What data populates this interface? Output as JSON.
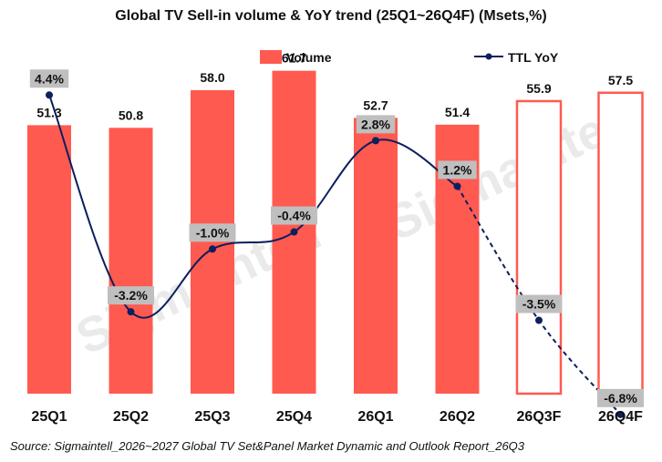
{
  "chart_data": {
    "type": "bar",
    "title": "Global TV Sell-in volume & YoY trend  (25Q1~26Q4F)  (Msets,%)",
    "categories": [
      "25Q1",
      "25Q2",
      "25Q3",
      "25Q4",
      "26Q1",
      "26Q2",
      "26Q3F",
      "26Q4F"
    ],
    "series": [
      {
        "name": "Volume",
        "type": "bar",
        "values": [
          51.3,
          50.8,
          58.0,
          61.7,
          52.7,
          51.4,
          55.9,
          57.5
        ],
        "labels": [
          "51.3",
          "50.8",
          "58.0",
          "61.7",
          "52.7",
          "51.4",
          "55.9",
          "57.5"
        ],
        "forecast_style": "outline",
        "forecast_from_index": 6,
        "color": "#ff5a50"
      },
      {
        "name": "TTL YoY",
        "type": "line",
        "values": [
          4.4,
          -3.2,
          -1.0,
          -0.4,
          2.8,
          1.2,
          -3.5,
          -6.8
        ],
        "labels": [
          "4.4%",
          "-3.2%",
          "-1.0%",
          "-0.4%",
          "2.8%",
          "1.2%",
          "-3.5%",
          "-6.8%"
        ],
        "dashed_from_index": 5,
        "color": "#0d1f5c"
      }
    ],
    "legend_position": "top",
    "grid": false
  },
  "watermark": "Sigmaintell",
  "source": "Source: Sigmaintell_2026~2027 Global TV Set&Panel Market Dynamic and Outlook Report_26Q3",
  "colors": {
    "bar": "#ff5a50",
    "line": "#0d1f5c",
    "label_box": "#bfbfbf"
  }
}
